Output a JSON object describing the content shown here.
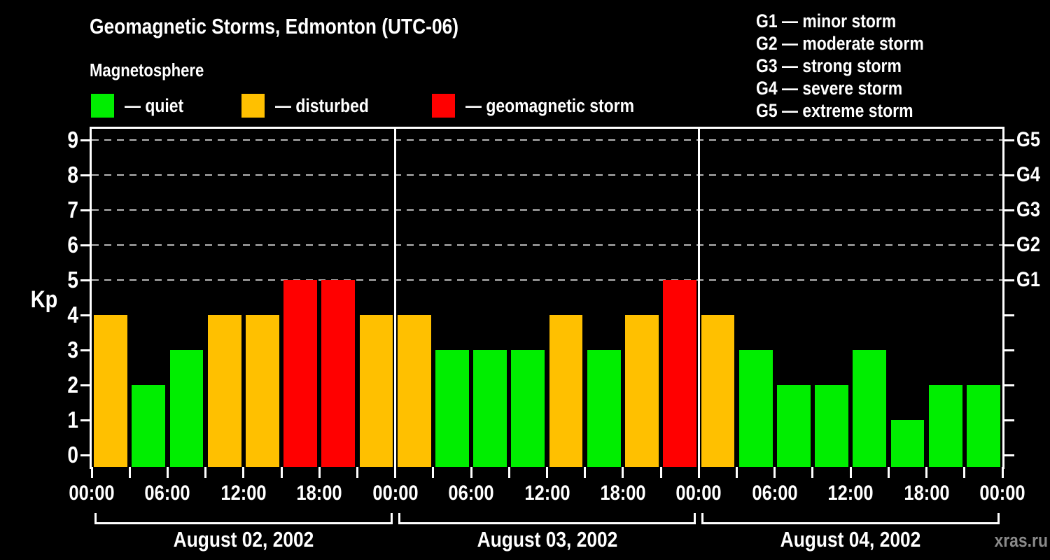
{
  "header": {
    "title": "Geomagnetic Storms, Edmonton (UTC-06)",
    "subtitle": "Magnetosphere",
    "legend": [
      {
        "key": "quiet",
        "label": "— quiet",
        "color": "#00ee00"
      },
      {
        "key": "disturbed",
        "label": "— disturbed",
        "color": "#ffc000"
      },
      {
        "key": "storm",
        "label": "— geomagnetic storm",
        "color": "#ff0000"
      }
    ],
    "g_scale_legend": [
      "G1 — minor storm",
      "G2 — moderate storm",
      "G3 — strong storm",
      "G4 — severe storm",
      "G5 — extreme storm"
    ]
  },
  "watermark": "xras.ru",
  "chart_data": {
    "type": "bar",
    "title": "Geomagnetic Storms, Edmonton (UTC-06)",
    "ylabel": "Kp",
    "ylim": [
      0,
      9
    ],
    "yticks": [
      0,
      1,
      2,
      3,
      4,
      5,
      6,
      7,
      8,
      9
    ],
    "gridlines_at_kp": [
      5,
      6,
      7,
      8,
      9
    ],
    "grid_style": "dashed horizontal lines at storm levels G1–G5",
    "right_axis_labels": [
      {
        "kp": 5,
        "label": "G1"
      },
      {
        "kp": 6,
        "label": "G2"
      },
      {
        "kp": 7,
        "label": "G3"
      },
      {
        "kp": 8,
        "label": "G4"
      },
      {
        "kp": 9,
        "label": "G5"
      }
    ],
    "x_interval_hours": 3,
    "x_tick_labels": [
      "00:00",
      "06:00",
      "12:00",
      "18:00",
      "00:00",
      "06:00",
      "12:00",
      "18:00",
      "00:00",
      "06:00",
      "12:00",
      "18:00",
      "00:00"
    ],
    "colors": {
      "quiet": "#00ee00",
      "disturbed": "#ffc000",
      "storm": "#ff0000"
    },
    "days": [
      {
        "date": "August 02, 2002",
        "kp": [
          4,
          2,
          3,
          4,
          4,
          5,
          5,
          4
        ],
        "status": [
          "disturbed",
          "quiet",
          "quiet",
          "disturbed",
          "disturbed",
          "storm",
          "storm",
          "disturbed"
        ]
      },
      {
        "date": "August 03, 2002",
        "kp": [
          4,
          3,
          3,
          3,
          4,
          3,
          4,
          5
        ],
        "status": [
          "disturbed",
          "quiet",
          "quiet",
          "quiet",
          "disturbed",
          "quiet",
          "disturbed",
          "storm"
        ]
      },
      {
        "date": "August 04, 2002",
        "kp": [
          4,
          3,
          2,
          2,
          3,
          1,
          2,
          2
        ],
        "status": [
          "disturbed",
          "quiet",
          "quiet",
          "quiet",
          "quiet",
          "quiet",
          "quiet",
          "quiet"
        ]
      }
    ]
  }
}
